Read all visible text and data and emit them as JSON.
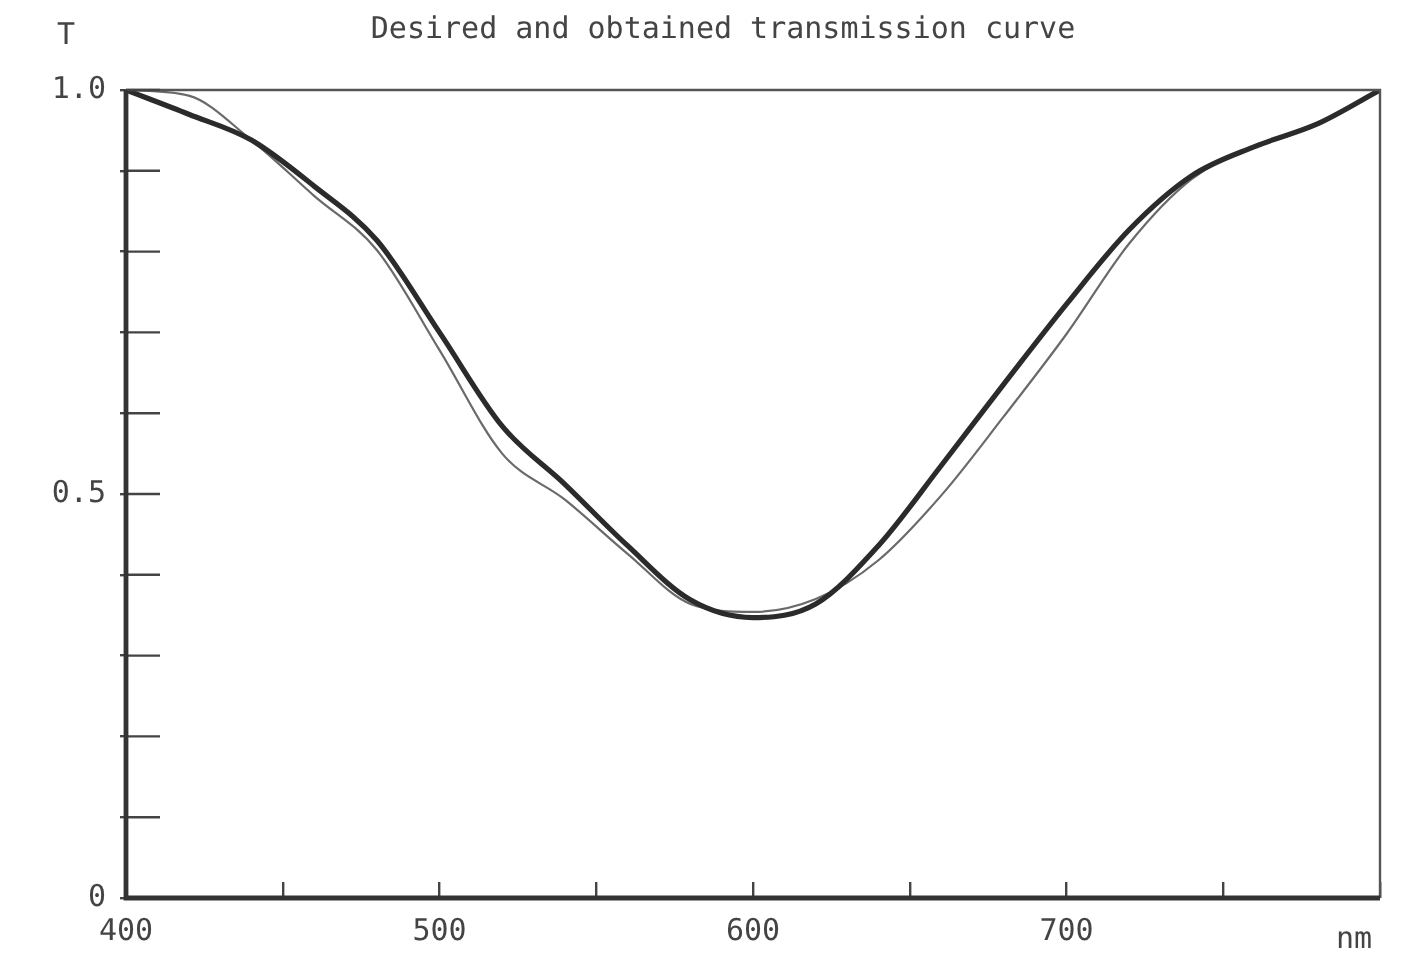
{
  "chart_data": {
    "type": "line",
    "title": "Desired and obtained transmission curve",
    "xlabel": "nm",
    "ylabel": "T",
    "x": [
      400,
      420,
      440,
      460,
      480,
      500,
      520,
      540,
      560,
      580,
      600,
      620,
      640,
      660,
      680,
      700,
      720,
      740,
      760,
      780,
      800
    ],
    "series": [
      {
        "color": "#2b2b2b",
        "values": [
          1.0,
          0.97,
          0.938,
          0.881,
          0.814,
          0.7,
          0.584,
          0.512,
          0.436,
          0.369,
          0.347,
          0.364,
          0.436,
          0.535,
          0.636,
          0.735,
          0.827,
          0.894,
          0.93,
          0.958,
          1.0
        ]
      },
      {
        "color": "#6a6a6a",
        "values": [
          1.0,
          0.993,
          0.938,
          0.869,
          0.802,
          0.678,
          0.55,
          0.493,
          0.426,
          0.364,
          0.354,
          0.37,
          0.418,
          0.498,
          0.596,
          0.698,
          0.81,
          0.89,
          0.93,
          0.958,
          1.0
        ]
      }
    ],
    "xlim": [
      400,
      800
    ],
    "xticks": [
      400,
      {
        "value": 450,
        "label": null
      },
      500,
      {
        "value": 550,
        "label": null
      },
      600,
      {
        "value": 650,
        "label": null
      },
      700,
      {
        "value": 750,
        "label": null
      },
      {
        "value": 800,
        "label": null
      }
    ],
    "ylim": [
      0,
      1
    ],
    "yticks": [
      0,
      {
        "value": 0.1,
        "label": null
      },
      {
        "value": 0.2,
        "label": null
      },
      {
        "value": 0.3,
        "label": null
      },
      {
        "value": 0.4,
        "label": null
      },
      {
        "value": 0.5,
        "label": "0.5"
      },
      {
        "value": 0.6,
        "label": null
      },
      {
        "value": 0.7,
        "label": null
      },
      {
        "value": 0.8,
        "label": null
      },
      {
        "value": 0.9,
        "label": null
      },
      {
        "value": 1,
        "label": "1.0"
      }
    ],
    "grid": false,
    "legend": false,
    "marker": "none",
    "line_style": "solid"
  }
}
